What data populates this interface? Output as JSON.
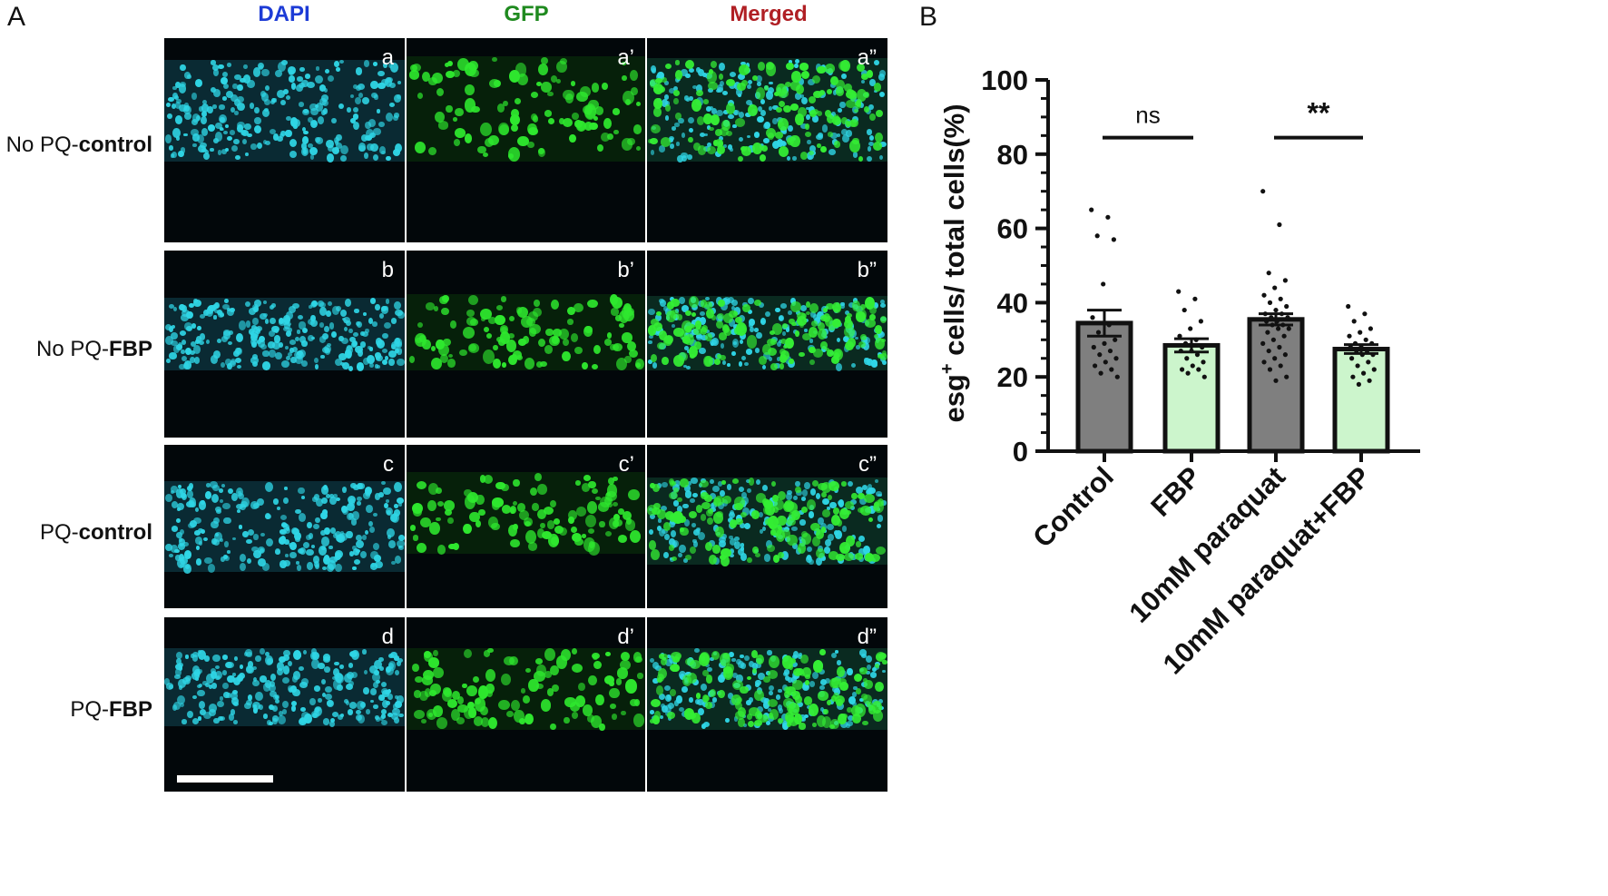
{
  "panel_a_label": "A",
  "panel_b_label": "B",
  "columns": [
    {
      "label": "DAPI",
      "color": "#1d3bd6"
    },
    {
      "label": "GFP",
      "color": "#1f8a1f"
    },
    {
      "label": "Merged",
      "color": "#b01f24"
    }
  ],
  "rows": [
    {
      "prefix": "No PQ-",
      "bold": "control",
      "subs": [
        "a",
        "a’",
        "a”"
      ]
    },
    {
      "prefix": "No PQ-",
      "bold": "FBP",
      "subs": [
        "b",
        "b’",
        "b”"
      ]
    },
    {
      "prefix": "PQ-",
      "bold": "control",
      "subs": [
        "c",
        "c’",
        "c”"
      ]
    },
    {
      "prefix": "PQ-",
      "bold": "FBP",
      "subs": [
        "d",
        "d’",
        "d”"
      ]
    }
  ],
  "chart_data": {
    "type": "bar",
    "categories": [
      "Control",
      "FBP",
      "10mM paraquat",
      "10mM paraquat+FBP"
    ],
    "values": [
      34.5,
      28.5,
      35.5,
      27.5
    ],
    "errors": [
      3.5,
      1.8,
      1.5,
      1.2
    ],
    "bar_colors": [
      "#7f7f7f",
      "#ccf5cc",
      "#7f7f7f",
      "#ccf5cc"
    ],
    "points": [
      [
        65,
        63,
        58,
        57,
        45,
        36,
        34,
        32,
        30,
        29,
        28,
        27,
        26,
        25,
        24,
        23,
        22,
        21,
        20
      ],
      [
        43,
        41,
        38,
        35,
        33,
        31,
        30,
        29,
        28,
        27,
        27,
        26,
        25,
        24,
        23,
        22,
        22,
        21,
        20
      ],
      [
        70,
        61,
        48,
        46,
        44,
        42,
        41,
        40,
        39,
        38,
        37,
        37,
        36,
        36,
        35,
        35,
        34,
        34,
        33,
        33,
        32,
        31,
        30,
        29,
        28,
        27,
        26,
        25,
        24,
        23,
        22,
        20,
        19
      ],
      [
        39,
        37,
        35,
        33,
        32,
        31,
        30,
        29,
        29,
        28,
        28,
        27,
        27,
        26,
        26,
        25,
        24,
        23,
        22,
        21,
        20,
        19,
        18
      ]
    ],
    "ylabel_main": "esg",
    "ylabel_sup": "+",
    "ylabel_rest": " cells/ total cells(%)",
    "ylim": [
      0,
      100
    ],
    "yticks": [
      0,
      20,
      40,
      60,
      80,
      100
    ],
    "significance": [
      {
        "from": 0,
        "to": 1,
        "y": 82,
        "label": "ns"
      },
      {
        "from": 2,
        "to": 3,
        "y": 82,
        "label": "**"
      }
    ]
  }
}
